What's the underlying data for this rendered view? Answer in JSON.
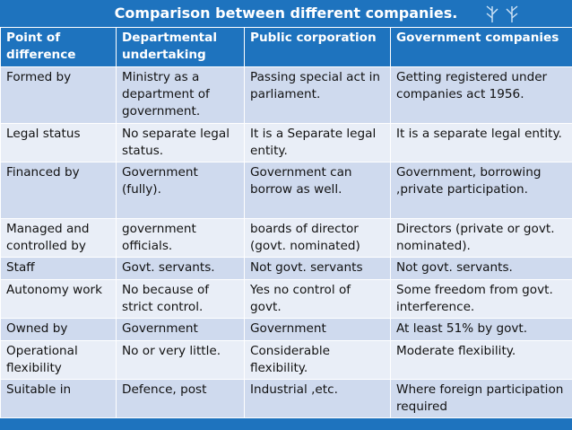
{
  "title": "Comparison between different companies.",
  "colors": {
    "header": "#1e73be",
    "row_dark": "#cfdaee",
    "row_light": "#e9eef7"
  },
  "icons": [
    "leaf-sprig-icon",
    "leaf-sprig-icon"
  ],
  "table": {
    "headers": [
      "Point of difference",
      "Departmental undertaking",
      "Public corporation",
      "Government companies"
    ],
    "rows": [
      [
        "Formed by",
        "Ministry as a department of government.",
        "Passing special act in parliament.",
        "Getting registered under companies act 1956."
      ],
      [
        "Legal status",
        "No separate legal status.",
        "It is a Separate legal entity.",
        "It is a separate legal entity."
      ],
      [
        "Financed by",
        "Government (fully).",
        "Government can borrow as well.",
        "Government, borrowing ,private participation."
      ],
      [
        "Managed and controlled by",
        "government officials.",
        "boards of director (govt. nominated)",
        "Directors (private or govt. nominated)."
      ],
      [
        "Staff",
        "Govt. servants.",
        "Not govt. servants",
        "Not govt. servants."
      ],
      [
        "Autonomy work",
        "No because of strict control.",
        "Yes no control of govt.",
        "Some freedom from govt. interference."
      ],
      [
        "Owned by",
        "Government",
        "Government",
        "At least 51% by govt."
      ],
      [
        "Operational flexibility",
        "No or very little.",
        "Considerable flexibility.",
        "Moderate flexibility."
      ],
      [
        "Suitable in",
        "Defence, post",
        "Industrial ,etc.",
        "Where foreign participation required"
      ]
    ]
  }
}
